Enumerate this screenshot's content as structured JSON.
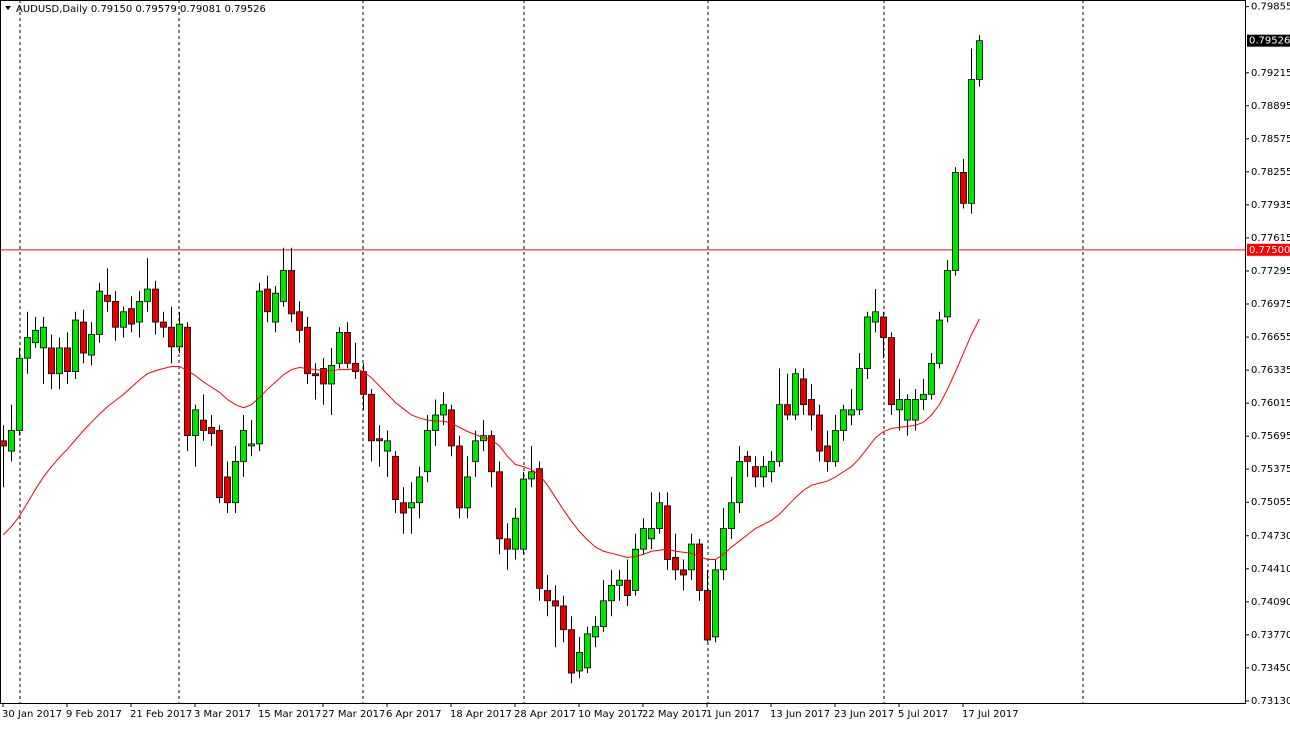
{
  "chart_data": {
    "type": "candlestick",
    "title": "AUDUSD,Daily",
    "ohlc_header": [
      {
        "value": 0.7915,
        "label": "0.79150"
      },
      0.79579,
      0.79081,
      0.79526
    ],
    "categories": [
      "30 Jan 2017",
      null,
      null,
      null,
      null,
      null,
      null,
      null,
      "9 Feb 2017",
      null,
      null,
      null,
      null,
      null,
      null,
      null,
      "21 Feb 2017",
      null,
      null,
      null,
      null,
      null,
      null,
      null,
      "3 Mar 2017",
      null,
      null,
      null,
      null,
      null,
      null,
      null,
      "15 Mar 2017",
      null,
      null,
      null,
      null,
      null,
      null,
      null,
      "27 Mar 2017",
      null,
      null,
      null,
      null,
      null,
      null,
      null,
      "6 Apr 2017",
      null,
      null,
      null,
      null,
      null,
      null,
      null,
      "18 Apr 2017",
      null,
      null,
      null,
      null,
      null,
      null,
      null,
      "28 Apr 2017",
      null,
      null,
      null,
      null,
      null,
      null,
      null,
      "10 May 2017",
      null,
      null,
      null,
      null,
      null,
      null,
      null,
      "22 May 2017",
      null,
      null,
      null,
      null,
      null,
      null,
      null,
      "1 Jun 2017",
      null,
      null,
      null,
      null,
      null,
      null,
      null,
      "13 Jun 2017",
      null,
      null,
      null,
      null,
      null,
      null,
      null,
      "23 Jun 2017",
      null,
      null,
      null,
      null,
      null,
      null,
      null,
      "5 Jul 2017",
      null,
      null,
      null,
      null,
      null,
      null,
      null,
      "17 Jul 2017",
      null,
      null
    ],
    "open": [
      0.7565,
      0.7555,
      0.7575,
      0.7645,
      0.766,
      0.7655,
      0.7655,
      0.763,
      0.7655,
      0.7632,
      0.768,
      0.7648,
      0.7668,
      0.7706,
      0.77,
      0.7675,
      0.7693,
      0.768,
      0.77,
      0.7712,
      0.768,
      0.7675,
      0.7656,
      0.7675,
      0.757,
      0.7585,
      0.7578,
      0.7575,
      0.753,
      0.7505,
      0.7545,
      0.756,
      0.7562,
      0.7712,
      0.768,
      0.77,
      0.773,
      0.769,
      0.7675,
      0.763,
      0.7635,
      0.762,
      0.764,
      0.767,
      0.764,
      0.7632,
      0.761,
      0.7567,
      0.7555,
      0.755,
      0.7505,
      0.75,
      0.7505,
      0.7535,
      0.7575,
      0.759,
      0.7595,
      0.756,
      0.75,
      0.7545,
      0.7565,
      0.757,
      0.7535,
      0.747,
      0.746,
      0.746,
      0.7528,
      0.7538,
      0.742,
      0.741,
      0.7405,
      0.7382,
      0.7342,
      0.7345,
      0.7375,
      0.7385,
      0.741,
      0.7425,
      0.743,
      0.742,
      0.746,
      0.747,
      0.748,
      0.7502,
      0.7452,
      0.744,
      0.744,
      0.7465,
      0.742,
      0.7375,
      0.744,
      0.748,
      0.7505,
      0.755,
      0.754,
      0.753,
      0.7535,
      0.7545,
      0.76,
      0.759,
      0.7625,
      0.7605,
      0.759,
      0.756,
      0.7545,
      0.7575,
      0.759,
      0.7595,
      0.7635,
      0.768,
      0.7685,
      0.7665,
      0.7595,
      0.7585,
      0.7585,
      0.7605,
      0.761,
      0.764,
      0.7685,
      0.773,
      0.7825,
      0.7795,
      0.7915
    ],
    "high": [
      0.758,
      0.76,
      0.7655,
      0.769,
      0.7685,
      0.7685,
      0.7668,
      0.7665,
      0.767,
      0.769,
      0.7692,
      0.768,
      0.7718,
      0.7732,
      0.771,
      0.7695,
      0.7705,
      0.771,
      0.7742,
      0.772,
      0.769,
      0.7695,
      0.769,
      0.768,
      0.76,
      0.761,
      0.759,
      0.758,
      0.7545,
      0.756,
      0.759,
      0.7585,
      0.7718,
      0.7725,
      0.7715,
      0.7752,
      0.7752,
      0.77,
      0.7685,
      0.764,
      0.7645,
      0.7655,
      0.7675,
      0.768,
      0.766,
      0.764,
      0.7615,
      0.758,
      0.7575,
      0.7555,
      0.752,
      0.7525,
      0.754,
      0.759,
      0.7605,
      0.7612,
      0.76,
      0.757,
      0.755,
      0.7575,
      0.7585,
      0.7575,
      0.7545,
      0.7485,
      0.75,
      0.7535,
      0.756,
      0.7545,
      0.7435,
      0.7425,
      0.7415,
      0.7395,
      0.7375,
      0.7385,
      0.7395,
      0.743,
      0.744,
      0.744,
      0.745,
      0.7475,
      0.749,
      0.7515,
      0.7515,
      0.7515,
      0.7475,
      0.745,
      0.7475,
      0.747,
      0.744,
      0.745,
      0.75,
      0.753,
      0.756,
      0.7555,
      0.755,
      0.755,
      0.7555,
      0.7635,
      0.763,
      0.7635,
      0.7635,
      0.762,
      0.76,
      0.7575,
      0.759,
      0.76,
      0.7615,
      0.765,
      0.769,
      0.7712,
      0.769,
      0.767,
      0.7625,
      0.761,
      0.7615,
      0.7625,
      0.765,
      0.769,
      0.774,
      0.783,
      0.7838,
      0.7945,
      0.79579
    ],
    "low": [
      0.752,
      0.7545,
      0.757,
      0.763,
      0.7655,
      0.762,
      0.7615,
      0.7615,
      0.762,
      0.7625,
      0.764,
      0.7638,
      0.766,
      0.769,
      0.7662,
      0.7665,
      0.767,
      0.7665,
      0.769,
      0.7668,
      0.7665,
      0.764,
      0.765,
      0.7555,
      0.754,
      0.7565,
      0.756,
      0.7505,
      0.7495,
      0.7495,
      0.753,
      0.755,
      0.7555,
      0.768,
      0.767,
      0.7695,
      0.768,
      0.766,
      0.762,
      0.7605,
      0.76,
      0.759,
      0.7635,
      0.7635,
      0.7625,
      0.7595,
      0.7545,
      0.754,
      0.753,
      0.7495,
      0.7475,
      0.7475,
      0.749,
      0.7525,
      0.756,
      0.758,
      0.755,
      0.749,
      0.749,
      0.753,
      0.7555,
      0.752,
      0.7455,
      0.744,
      0.745,
      0.7455,
      0.752,
      0.741,
      0.7395,
      0.7365,
      0.737,
      0.733,
      0.7335,
      0.734,
      0.7365,
      0.738,
      0.7395,
      0.741,
      0.7405,
      0.7415,
      0.7455,
      0.746,
      0.7475,
      0.744,
      0.743,
      0.742,
      0.743,
      0.741,
      0.737,
      0.737,
      0.743,
      0.747,
      0.7495,
      0.753,
      0.752,
      0.752,
      0.7525,
      0.754,
      0.7585,
      0.7585,
      0.759,
      0.7575,
      0.7545,
      0.7535,
      0.754,
      0.7565,
      0.758,
      0.759,
      0.7625,
      0.767,
      0.7645,
      0.759,
      0.7575,
      0.757,
      0.7575,
      0.7595,
      0.7605,
      0.7635,
      0.768,
      0.7725,
      0.779,
      0.7785,
      0.79081
    ],
    "close": [
      0.756,
      0.7575,
      0.7645,
      0.7665,
      0.7672,
      0.7675,
      0.763,
      0.7655,
      0.7632,
      0.7682,
      0.765,
      0.7668,
      0.771,
      0.77,
      0.7675,
      0.769,
      0.7678,
      0.77,
      0.7712,
      0.768,
      0.7675,
      0.7656,
      0.7678,
      0.757,
      0.7595,
      0.7575,
      0.7572,
      0.751,
      0.7505,
      0.7545,
      0.7575,
      0.7562,
      0.771,
      0.769,
      0.7708,
      0.773,
      0.7688,
      0.7672,
      0.763,
      0.7628,
      0.762,
      0.7638,
      0.767,
      0.764,
      0.7632,
      0.761,
      0.7565,
      0.7565,
      0.7565,
      0.7508,
      0.7495,
      0.7505,
      0.753,
      0.7575,
      0.759,
      0.76,
      0.756,
      0.75,
      0.753,
      0.7565,
      0.757,
      0.7535,
      0.747,
      0.746,
      0.749,
      0.7528,
      0.7535,
      0.7422,
      0.741,
      0.7405,
      0.7382,
      0.734,
      0.736,
      0.7378,
      0.7385,
      0.741,
      0.7425,
      0.743,
      0.7415,
      0.746,
      0.748,
      0.748,
      0.7505,
      0.745,
      0.744,
      0.7435,
      0.7465,
      0.742,
      0.7372,
      0.744,
      0.748,
      0.7505,
      0.7545,
      0.7545,
      0.753,
      0.754,
      0.7545,
      0.76,
      0.759,
      0.763,
      0.76,
      0.759,
      0.7555,
      0.7545,
      0.7575,
      0.7595,
      0.7595,
      0.7635,
      0.7685,
      0.769,
      0.7665,
      0.76,
      0.7605,
      0.7605,
      0.7605,
      0.761,
      0.764,
      0.7682,
      0.773,
      0.7825,
      0.7795,
      0.7915,
      0.79526
    ],
    "up_color": "#00e600",
    "down_color": "#e60000",
    "ma": {
      "color": "#ff0000",
      "values": [
        0.7474,
        0.7482,
        0.7492,
        0.7505,
        0.7518,
        0.753,
        0.754,
        0.7549,
        0.7557,
        0.7566,
        0.7575,
        0.7583,
        0.7591,
        0.7598,
        0.7604,
        0.761,
        0.7617,
        0.7624,
        0.763,
        0.7633,
        0.7635,
        0.7637,
        0.7637,
        0.7633,
        0.7628,
        0.7622,
        0.7617,
        0.7612,
        0.7605,
        0.76,
        0.7597,
        0.76,
        0.7607,
        0.7615,
        0.7622,
        0.7629,
        0.7634,
        0.7636,
        0.7635,
        0.7634,
        0.7633,
        0.7633,
        0.7634,
        0.7634,
        0.7635,
        0.7632,
        0.7626,
        0.7618,
        0.761,
        0.7602,
        0.7596,
        0.759,
        0.7587,
        0.7585,
        0.7584,
        0.7584,
        0.7582,
        0.7578,
        0.7574,
        0.7571,
        0.7568,
        0.7566,
        0.756,
        0.755,
        0.7542,
        0.754,
        0.7537,
        0.7532,
        0.7522,
        0.751,
        0.7498,
        0.7487,
        0.7477,
        0.7469,
        0.7462,
        0.7458,
        0.7456,
        0.7454,
        0.7452,
        0.7453,
        0.7455,
        0.7458,
        0.7459,
        0.746,
        0.7458,
        0.7457,
        0.7456,
        0.7453,
        0.745,
        0.745,
        0.7455,
        0.7462,
        0.7468,
        0.7474,
        0.748,
        0.7484,
        0.7488,
        0.7494,
        0.7502,
        0.751,
        0.7517,
        0.7522,
        0.7524,
        0.7526,
        0.753,
        0.7535,
        0.754,
        0.7548,
        0.7558,
        0.7568,
        0.7574,
        0.7577,
        0.7578,
        0.7579,
        0.758,
        0.7583,
        0.759,
        0.76,
        0.7615,
        0.7632,
        0.765,
        0.7668,
        0.7683
      ]
    },
    "hline": {
      "value": 0.775,
      "label": "0.77500",
      "color": "#ff0000"
    },
    "current_price": 0.79526,
    "ylim": [
      0.7311,
      0.7992
    ],
    "yticks": [
      0.79855,
      0.79215,
      0.78895,
      0.78575,
      0.78255,
      0.77935,
      0.77615,
      0.77295,
      0.76975,
      0.76655,
      0.76335,
      0.76015,
      0.75695,
      0.75375,
      0.75055,
      {
        "value": 0.7473,
        "label": "0.74730"
      },
      {
        "value": 0.7441,
        "label": "0.74410"
      },
      {
        "value": 0.7409,
        "label": "0.74090"
      },
      {
        "value": 0.7377,
        "label": "0.73770"
      },
      {
        "value": 0.7345,
        "label": "0.73450"
      },
      {
        "value": 0.7313,
        "label": "0.73130"
      }
    ]
  }
}
